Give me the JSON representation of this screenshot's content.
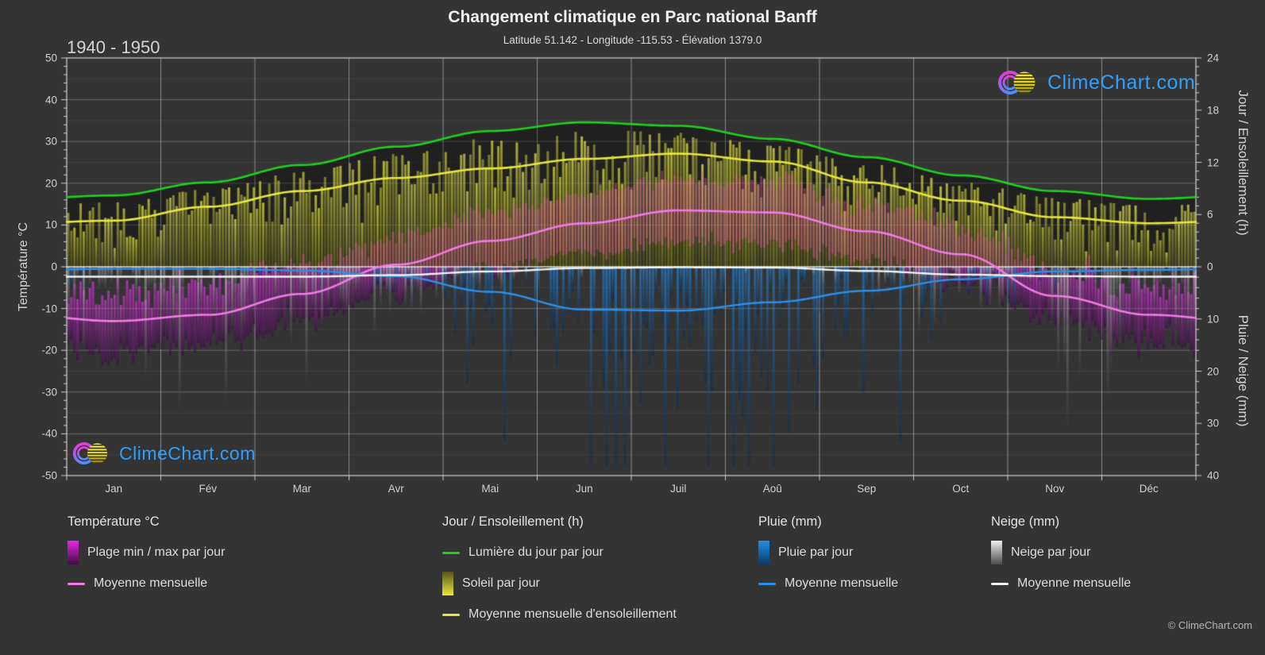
{
  "header": {
    "title": "Changement climatique en Parc national Banff",
    "subtitle": "Latitude 51.142 - Longitude -115.53 - Élévation 1379.0",
    "period": "1940 - 1950"
  },
  "watermark": {
    "text": "ClimeChart.com"
  },
  "copyright": "© ClimeChart.com",
  "axes": {
    "left_title": "Température °C",
    "right_top_title": "Jour / Ensoleillement (h)",
    "right_bottom_title": "Pluie / Neige (mm)",
    "temp_ticks": [
      50,
      40,
      30,
      20,
      10,
      0,
      -10,
      -20,
      -30,
      -40,
      -50
    ],
    "temp_range": [
      -50,
      50
    ],
    "sun_ticks": [
      24,
      18,
      12,
      6,
      0
    ],
    "sun_range": [
      0,
      24
    ],
    "precip_ticks": [
      10,
      20,
      30,
      40
    ],
    "precip_range": [
      0,
      40
    ]
  },
  "chart_data": {
    "type": "bar",
    "title": "Changement climatique en Parc national Banff",
    "period": "1940 - 1950",
    "categories": [
      "Jan",
      "Fév",
      "Mar",
      "Avr",
      "Mai",
      "Jun",
      "Juil",
      "Aoû",
      "Sep",
      "Oct",
      "Nov",
      "Déc"
    ],
    "series": [
      {
        "name": "Lumière du jour par jour (h)",
        "kind": "line",
        "color": "#1dd11d",
        "values": [
          8.2,
          9.7,
          11.7,
          13.8,
          15.6,
          16.6,
          16.2,
          14.7,
          12.6,
          10.5,
          8.7,
          7.8
        ]
      },
      {
        "name": "Moyenne mensuelle d'ensoleillement (h)",
        "kind": "line",
        "color": "#e6e63e",
        "values": [
          5.3,
          6.9,
          8.7,
          10.2,
          11.3,
          12.4,
          13.0,
          12.1,
          9.7,
          7.6,
          5.7,
          5.0
        ]
      },
      {
        "name": "Température moyenne mensuelle (°C)",
        "kind": "line",
        "color": "#f07ae6",
        "values": [
          -13,
          -11.5,
          -6.5,
          0.5,
          6.2,
          10.4,
          13.5,
          13.0,
          8.5,
          3.0,
          -7.0,
          -11.5
        ]
      },
      {
        "name": "Température max par jour, moyenne (°C)",
        "kind": "bar-top",
        "color": "#cc3fcc",
        "values": [
          -6,
          -4,
          0.5,
          7,
          13,
          17.5,
          21,
          20.5,
          15,
          9.5,
          0,
          -4.5
        ]
      },
      {
        "name": "Température min par jour, moyenne (°C)",
        "kind": "bar-bottom",
        "color": "#3a103a",
        "values": [
          -20,
          -19,
          -13.5,
          -6,
          -0.5,
          3.5,
          6,
          5.5,
          1.5,
          -4,
          -13,
          -18
        ]
      },
      {
        "name": "Soleil par jour, moyenne (h)",
        "kind": "bar",
        "color": "#99992b",
        "values": [
          5.3,
          6.9,
          8.7,
          10.2,
          11.3,
          12.4,
          13.0,
          12.1,
          9.7,
          7.6,
          5.7,
          5.0
        ]
      },
      {
        "name": "Pluie moyenne mensuelle (mm/jour)",
        "kind": "line",
        "color": "#2e8fe6",
        "values": [
          0.4,
          0.4,
          0.7,
          1.8,
          4.8,
          8.2,
          8.4,
          6.8,
          4.6,
          2.4,
          0.9,
          0.6
        ]
      },
      {
        "name": "Neige moyenne mensuelle (mm/jour)",
        "kind": "line",
        "color": "#f2f2f2",
        "values": [
          1.9,
          1.9,
          1.9,
          1.6,
          0.9,
          0.25,
          0.1,
          0.15,
          0.8,
          1.5,
          1.8,
          1.9
        ]
      }
    ],
    "ylim_temp": [
      -50,
      50
    ],
    "ylim_sun": [
      0,
      24
    ],
    "ylim_precip": [
      0,
      40
    ],
    "grid": true,
    "legend_position": "bottom",
    "random_seed": 19401950
  },
  "legend": {
    "groups": [
      {
        "title": "Température °C",
        "items": [
          {
            "swatch": "bar-magenta",
            "label": "Plage min / max par jour"
          },
          {
            "swatch": "line-pink",
            "label": "Moyenne mensuelle"
          }
        ]
      },
      {
        "title": "Jour / Ensoleillement (h)",
        "items": [
          {
            "swatch": "line-green",
            "label": "Lumière du jour par jour"
          },
          {
            "swatch": "bar-yellow",
            "label": "Soleil par jour"
          },
          {
            "swatch": "line-yellow",
            "label": "Moyenne mensuelle d'ensoleillement"
          }
        ]
      },
      {
        "title": "Pluie (mm)",
        "items": [
          {
            "swatch": "bar-blue",
            "label": "Pluie par jour"
          },
          {
            "swatch": "line-blue",
            "label": "Moyenne mensuelle"
          }
        ]
      },
      {
        "title": "Neige (mm)",
        "items": [
          {
            "swatch": "bar-gray",
            "label": "Neige par jour"
          },
          {
            "swatch": "line-white",
            "label": "Moyenne mensuelle"
          }
        ]
      }
    ]
  }
}
